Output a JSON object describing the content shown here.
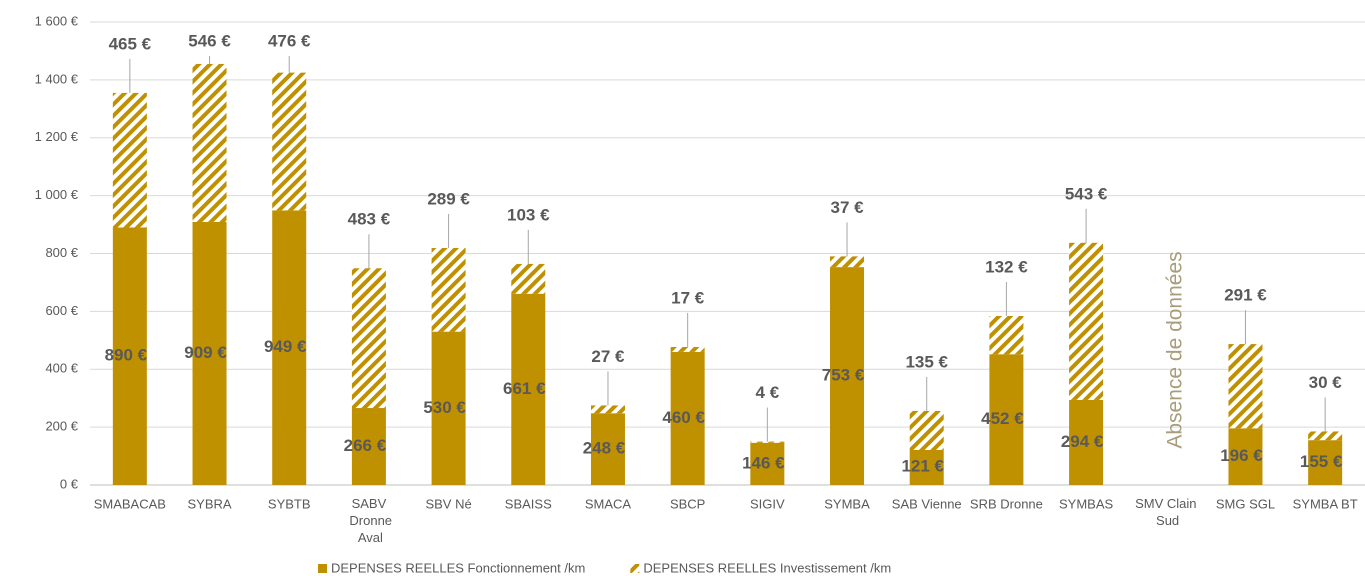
{
  "chart_data": {
    "type": "stacked_bar",
    "categories": [
      "SMABACAB",
      "SYBRA",
      "SYBTB",
      "SABV Dronne Aval",
      "SBV Né",
      "SBAISS",
      "SMACA",
      "SBCP",
      "SIGIV",
      "SYMBA",
      "SAB Vienne",
      "SRB Dronne",
      "SYMBAS",
      "SMV Clain Sud",
      "SMG SGL",
      "SYMBA BT"
    ],
    "series": [
      {
        "name": "DEPENSES REELLES Fonctionnement /km",
        "color": "#bf9000",
        "hatch": false,
        "values": [
          890,
          909,
          949,
          266,
          530,
          661,
          248,
          460,
          146,
          753,
          121,
          452,
          294,
          null,
          196,
          155
        ],
        "value_labels": [
          "890 €",
          "909 €",
          "949 €",
          "266 €",
          "530 €",
          "661 €",
          "248 €",
          "460 €",
          "146 €",
          "753 €",
          "121 €",
          "452 €",
          "294 €",
          null,
          "196 €",
          "155 €"
        ]
      },
      {
        "name": "DEPENSES REELLES Investissement /km",
        "color": "#bf9000",
        "hatch": true,
        "values": [
          465,
          546,
          476,
          483,
          289,
          103,
          27,
          17,
          4,
          37,
          135,
          132,
          543,
          null,
          291,
          30
        ],
        "value_labels": [
          "465 €",
          "546 €",
          "476 €",
          "483 €",
          "289 €",
          "103 €",
          "27 €",
          "17 €",
          "4 €",
          "37 €",
          "135 €",
          "132 €",
          "543 €",
          null,
          "291 €",
          "30 €"
        ]
      }
    ],
    "annotations": [
      {
        "text": "Absence de données",
        "category": 13
      }
    ],
    "ylim": [
      0,
      1600
    ],
    "yticks": [
      {
        "value": 0,
        "label": "0 €"
      },
      {
        "value": 200,
        "label": "200 €"
      },
      {
        "value": 400,
        "label": "400 €"
      },
      {
        "value": 600,
        "label": "600 €"
      },
      {
        "value": 800,
        "label": "800 €"
      },
      {
        "value": 1000,
        "label": "1 000 €"
      },
      {
        "value": 1200,
        "label": "1 200 €"
      },
      {
        "value": 1400,
        "label": "1 400 €"
      },
      {
        "value": 1600,
        "label": "1 600 €"
      }
    ],
    "grid": true,
    "legend": "bottom"
  }
}
